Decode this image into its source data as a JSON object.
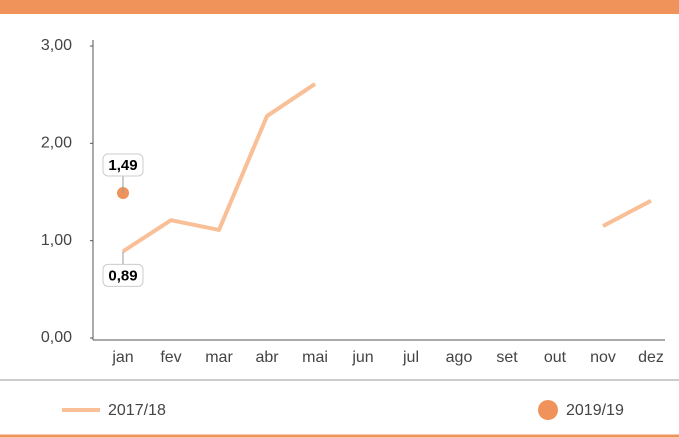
{
  "chart_data": {
    "type": "line",
    "categories": [
      "jan",
      "fev",
      "mar",
      "abr",
      "mai",
      "jun",
      "jul",
      "ago",
      "set",
      "out",
      "nov",
      "dez"
    ],
    "series": [
      {
        "name": "2017/18",
        "color": "#f9bf96",
        "values": [
          0.89,
          1.21,
          1.11,
          2.28,
          2.61,
          null,
          null,
          null,
          null,
          null,
          1.15,
          1.41
        ],
        "value_labels": [
          "0,89",
          null,
          null,
          null,
          null,
          null,
          null,
          null,
          null,
          null,
          null,
          null
        ]
      },
      {
        "name": "2019/19",
        "color": "#f0935a",
        "values": [
          1.49,
          null,
          null,
          null,
          null,
          null,
          null,
          null,
          null,
          null,
          null,
          null
        ],
        "value_labels": [
          "1,49",
          null,
          null,
          null,
          null,
          null,
          null,
          null,
          null,
          null,
          null,
          null
        ]
      }
    ],
    "ylim": [
      0,
      3
    ],
    "yticks": [
      {
        "value": 0,
        "label": "0,00"
      },
      {
        "value": 1,
        "label": "1,00"
      },
      {
        "value": 2,
        "label": "2,00"
      },
      {
        "value": 3,
        "label": "3,00"
      }
    ],
    "grid": false
  }
}
